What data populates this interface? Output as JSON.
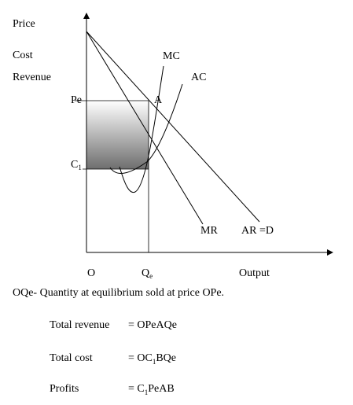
{
  "labels": {
    "price": "Price",
    "cost": "Cost",
    "revenue": "Revenue",
    "output": "Output",
    "origin": "O",
    "pe": "Pe",
    "c1": "C",
    "c1_sub": "1",
    "qe": "Q",
    "qe_sub": "e",
    "point_a": "A"
  },
  "curves": {
    "mc": "MC",
    "ac": "AC",
    "mr": "MR",
    "ar": "AR =D"
  },
  "caption": "OQe- Quantity at equilibrium sold at price OPe.",
  "equations": [
    {
      "label": "Total revenue",
      "eq": "= OPeAQe"
    },
    {
      "label": "Total cost",
      "eq": "= OC",
      "sub": "1",
      "eq_rest": "BQe"
    },
    {
      "label": "Profits",
      "eq": "= C",
      "sub": "1",
      "eq_rest": "PeAB"
    }
  ],
  "colors": {
    "profit_top": "#ffffff",
    "profit_bottom": "#6e6e6e"
  }
}
